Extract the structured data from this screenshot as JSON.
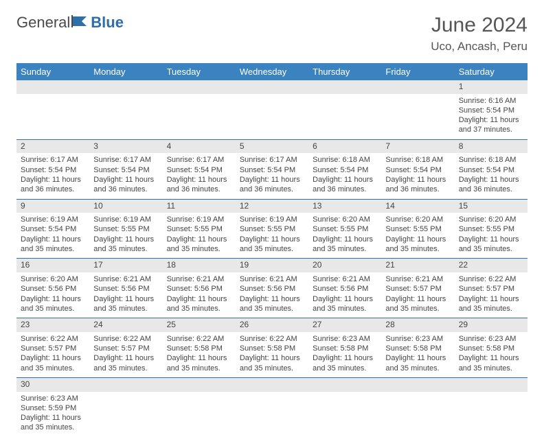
{
  "logo": {
    "text1": "General",
    "text2": "Blue"
  },
  "title": "June 2024",
  "location": "Uco, Ancash, Peru",
  "colors": {
    "header_bg": "#3b83c0",
    "header_fg": "#ffffff",
    "row_divider": "#2f6fa8",
    "daynum_bg": "#e8e8e8",
    "text": "#444444",
    "logo_gray": "#4a4a4a",
    "logo_blue": "#2f6fa8"
  },
  "day_headers": [
    "Sunday",
    "Monday",
    "Tuesday",
    "Wednesday",
    "Thursday",
    "Friday",
    "Saturday"
  ],
  "weeks": [
    [
      {
        "day": "",
        "sunrise": "",
        "sunset": "",
        "daylight": ""
      },
      {
        "day": "",
        "sunrise": "",
        "sunset": "",
        "daylight": ""
      },
      {
        "day": "",
        "sunrise": "",
        "sunset": "",
        "daylight": ""
      },
      {
        "day": "",
        "sunrise": "",
        "sunset": "",
        "daylight": ""
      },
      {
        "day": "",
        "sunrise": "",
        "sunset": "",
        "daylight": ""
      },
      {
        "day": "",
        "sunrise": "",
        "sunset": "",
        "daylight": ""
      },
      {
        "day": "1",
        "sunrise": "Sunrise: 6:16 AM",
        "sunset": "Sunset: 5:54 PM",
        "daylight": "Daylight: 11 hours and 37 minutes."
      }
    ],
    [
      {
        "day": "2",
        "sunrise": "Sunrise: 6:17 AM",
        "sunset": "Sunset: 5:54 PM",
        "daylight": "Daylight: 11 hours and 36 minutes."
      },
      {
        "day": "3",
        "sunrise": "Sunrise: 6:17 AM",
        "sunset": "Sunset: 5:54 PM",
        "daylight": "Daylight: 11 hours and 36 minutes."
      },
      {
        "day": "4",
        "sunrise": "Sunrise: 6:17 AM",
        "sunset": "Sunset: 5:54 PM",
        "daylight": "Daylight: 11 hours and 36 minutes."
      },
      {
        "day": "5",
        "sunrise": "Sunrise: 6:17 AM",
        "sunset": "Sunset: 5:54 PM",
        "daylight": "Daylight: 11 hours and 36 minutes."
      },
      {
        "day": "6",
        "sunrise": "Sunrise: 6:18 AM",
        "sunset": "Sunset: 5:54 PM",
        "daylight": "Daylight: 11 hours and 36 minutes."
      },
      {
        "day": "7",
        "sunrise": "Sunrise: 6:18 AM",
        "sunset": "Sunset: 5:54 PM",
        "daylight": "Daylight: 11 hours and 36 minutes."
      },
      {
        "day": "8",
        "sunrise": "Sunrise: 6:18 AM",
        "sunset": "Sunset: 5:54 PM",
        "daylight": "Daylight: 11 hours and 36 minutes."
      }
    ],
    [
      {
        "day": "9",
        "sunrise": "Sunrise: 6:19 AM",
        "sunset": "Sunset: 5:54 PM",
        "daylight": "Daylight: 11 hours and 35 minutes."
      },
      {
        "day": "10",
        "sunrise": "Sunrise: 6:19 AM",
        "sunset": "Sunset: 5:55 PM",
        "daylight": "Daylight: 11 hours and 35 minutes."
      },
      {
        "day": "11",
        "sunrise": "Sunrise: 6:19 AM",
        "sunset": "Sunset: 5:55 PM",
        "daylight": "Daylight: 11 hours and 35 minutes."
      },
      {
        "day": "12",
        "sunrise": "Sunrise: 6:19 AM",
        "sunset": "Sunset: 5:55 PM",
        "daylight": "Daylight: 11 hours and 35 minutes."
      },
      {
        "day": "13",
        "sunrise": "Sunrise: 6:20 AM",
        "sunset": "Sunset: 5:55 PM",
        "daylight": "Daylight: 11 hours and 35 minutes."
      },
      {
        "day": "14",
        "sunrise": "Sunrise: 6:20 AM",
        "sunset": "Sunset: 5:55 PM",
        "daylight": "Daylight: 11 hours and 35 minutes."
      },
      {
        "day": "15",
        "sunrise": "Sunrise: 6:20 AM",
        "sunset": "Sunset: 5:55 PM",
        "daylight": "Daylight: 11 hours and 35 minutes."
      }
    ],
    [
      {
        "day": "16",
        "sunrise": "Sunrise: 6:20 AM",
        "sunset": "Sunset: 5:56 PM",
        "daylight": "Daylight: 11 hours and 35 minutes."
      },
      {
        "day": "17",
        "sunrise": "Sunrise: 6:21 AM",
        "sunset": "Sunset: 5:56 PM",
        "daylight": "Daylight: 11 hours and 35 minutes."
      },
      {
        "day": "18",
        "sunrise": "Sunrise: 6:21 AM",
        "sunset": "Sunset: 5:56 PM",
        "daylight": "Daylight: 11 hours and 35 minutes."
      },
      {
        "day": "19",
        "sunrise": "Sunrise: 6:21 AM",
        "sunset": "Sunset: 5:56 PM",
        "daylight": "Daylight: 11 hours and 35 minutes."
      },
      {
        "day": "20",
        "sunrise": "Sunrise: 6:21 AM",
        "sunset": "Sunset: 5:56 PM",
        "daylight": "Daylight: 11 hours and 35 minutes."
      },
      {
        "day": "21",
        "sunrise": "Sunrise: 6:21 AM",
        "sunset": "Sunset: 5:57 PM",
        "daylight": "Daylight: 11 hours and 35 minutes."
      },
      {
        "day": "22",
        "sunrise": "Sunrise: 6:22 AM",
        "sunset": "Sunset: 5:57 PM",
        "daylight": "Daylight: 11 hours and 35 minutes."
      }
    ],
    [
      {
        "day": "23",
        "sunrise": "Sunrise: 6:22 AM",
        "sunset": "Sunset: 5:57 PM",
        "daylight": "Daylight: 11 hours and 35 minutes."
      },
      {
        "day": "24",
        "sunrise": "Sunrise: 6:22 AM",
        "sunset": "Sunset: 5:57 PM",
        "daylight": "Daylight: 11 hours and 35 minutes."
      },
      {
        "day": "25",
        "sunrise": "Sunrise: 6:22 AM",
        "sunset": "Sunset: 5:58 PM",
        "daylight": "Daylight: 11 hours and 35 minutes."
      },
      {
        "day": "26",
        "sunrise": "Sunrise: 6:22 AM",
        "sunset": "Sunset: 5:58 PM",
        "daylight": "Daylight: 11 hours and 35 minutes."
      },
      {
        "day": "27",
        "sunrise": "Sunrise: 6:23 AM",
        "sunset": "Sunset: 5:58 PM",
        "daylight": "Daylight: 11 hours and 35 minutes."
      },
      {
        "day": "28",
        "sunrise": "Sunrise: 6:23 AM",
        "sunset": "Sunset: 5:58 PM",
        "daylight": "Daylight: 11 hours and 35 minutes."
      },
      {
        "day": "29",
        "sunrise": "Sunrise: 6:23 AM",
        "sunset": "Sunset: 5:58 PM",
        "daylight": "Daylight: 11 hours and 35 minutes."
      }
    ],
    [
      {
        "day": "30",
        "sunrise": "Sunrise: 6:23 AM",
        "sunset": "Sunset: 5:59 PM",
        "daylight": "Daylight: 11 hours and 35 minutes."
      },
      {
        "day": "",
        "sunrise": "",
        "sunset": "",
        "daylight": ""
      },
      {
        "day": "",
        "sunrise": "",
        "sunset": "",
        "daylight": ""
      },
      {
        "day": "",
        "sunrise": "",
        "sunset": "",
        "daylight": ""
      },
      {
        "day": "",
        "sunrise": "",
        "sunset": "",
        "daylight": ""
      },
      {
        "day": "",
        "sunrise": "",
        "sunset": "",
        "daylight": ""
      },
      {
        "day": "",
        "sunrise": "",
        "sunset": "",
        "daylight": ""
      }
    ]
  ]
}
